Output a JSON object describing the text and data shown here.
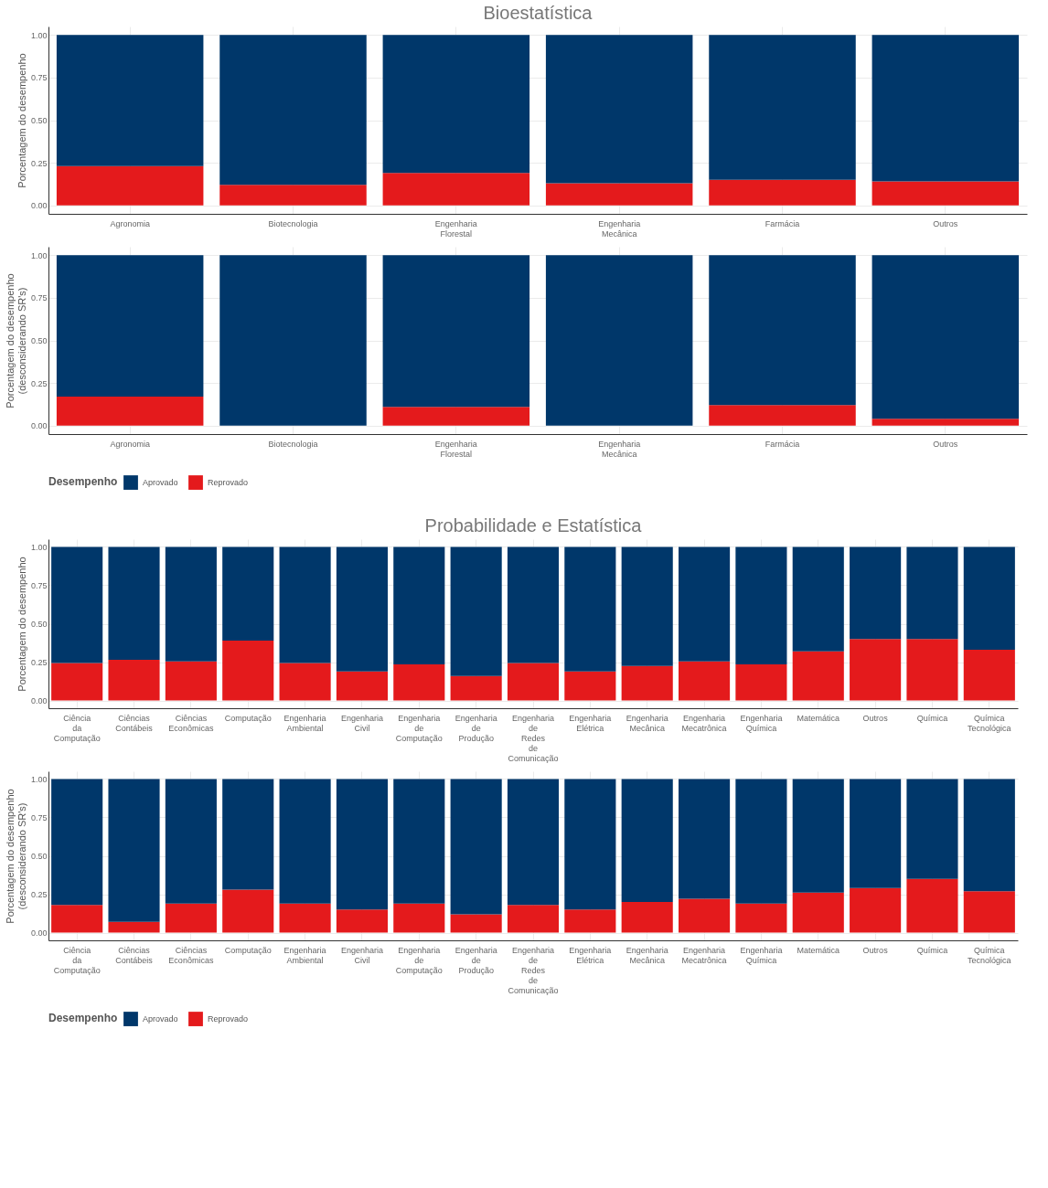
{
  "chart_data": [
    {
      "type": "bar",
      "title": "Bioestatística",
      "ylabel": "Porcentagem do desempenho",
      "stacked": true,
      "grid": true,
      "categories": [
        "Agronomia",
        "Biotecnologia",
        "Engenharia Florestal",
        "Engenharia Mecânica",
        "Farmácia",
        "Outros"
      ],
      "ylim": [
        -0.05,
        1.05
      ],
      "yticks": [
        {
          "value": 0,
          "label": "0.00"
        },
        {
          "value": 0.25,
          "label": "0.25"
        },
        {
          "value": 0.5,
          "label": "0.50"
        },
        {
          "value": 0.75,
          "label": "0.75"
        },
        {
          "value": 1,
          "label": "1.00"
        }
      ],
      "series": [
        {
          "color": "#e41a1c",
          "values": [
            0.23,
            0.12,
            0.19,
            0.13,
            0.15,
            0.14
          ]
        },
        {
          "color": "#00376a",
          "values": [
            0.77,
            0.88,
            0.81,
            0.87,
            0.85,
            0.86
          ]
        }
      ]
    },
    {
      "type": "bar",
      "ylabel": "Porcentagem do desempenho\n(desconsiderando SR's)",
      "stacked": true,
      "grid": true,
      "legend": "bottom",
      "legend_title": "Desempenho",
      "categories": [
        "Agronomia",
        "Biotecnologia",
        "Engenharia Florestal",
        "Engenharia Mecânica",
        "Farmácia",
        "Outros"
      ],
      "ylim": [
        -0.05,
        1.05
      ],
      "yticks": [
        {
          "value": 0,
          "label": "0.00"
        },
        {
          "value": 0.25,
          "label": "0.25"
        },
        {
          "value": 0.5,
          "label": "0.50"
        },
        {
          "value": 0.75,
          "label": "0.75"
        },
        {
          "value": 1,
          "label": "1.00"
        }
      ],
      "series": [
        {
          "name": "Reprovado",
          "color": "#e41a1c",
          "values": [
            0.17,
            0,
            0.11,
            0,
            0.12,
            0.04
          ]
        },
        {
          "name": "Aprovado",
          "color": "#00376a",
          "values": [
            0.83,
            1,
            0.89,
            1,
            0.88,
            0.96
          ]
        }
      ]
    },
    {
      "type": "bar",
      "title": "Probabilidade e Estatística",
      "ylabel": "Porcentagem do desempenho",
      "stacked": true,
      "grid": true,
      "categories": [
        "Ciência da Computação",
        "Ciências Contábeis",
        "Ciências Econômicas",
        "Computação",
        "Engenharia Ambiental",
        "Engenharia Civil",
        "Engenharia de Computação",
        "Engenharia de Produção",
        "Engenharia de Redes de Comunicação",
        "Engenharia Elétrica",
        "Engenharia Mecânica",
        "Engenharia Mecatrônica",
        "Engenharia Química",
        "Matemática",
        "Outros",
        "Química",
        "Química Tecnológica"
      ],
      "ylim": [
        -0.05,
        1.05
      ],
      "yticks": [
        {
          "value": 0,
          "label": "0.00"
        },
        {
          "value": 0.25,
          "label": "0.25"
        },
        {
          "value": 0.5,
          "label": "0.50"
        },
        {
          "value": 0.75,
          "label": "0.75"
        },
        {
          "value": 1,
          "label": "1.00"
        }
      ],
      "series": [
        {
          "color": "#e41a1c",
          "values": [
            0.245,
            0.265,
            0.255,
            0.39,
            0.245,
            0.19,
            0.235,
            0.16,
            0.245,
            0.19,
            0.225,
            0.255,
            0.235,
            0.32,
            0.4,
            0.4,
            0.33
          ]
        },
        {
          "color": "#00376a",
          "values": [
            0.755,
            0.735,
            0.745,
            0.61,
            0.755,
            0.81,
            0.765,
            0.84,
            0.755,
            0.81,
            0.775,
            0.745,
            0.765,
            0.68,
            0.6,
            0.6,
            0.67
          ]
        }
      ]
    },
    {
      "type": "bar",
      "ylabel": "Porcentagem do desempenho\n(desconsiderando SR's)",
      "stacked": true,
      "grid": true,
      "legend": "bottom",
      "legend_title": "Desempenho",
      "categories": [
        "Ciência da Computação",
        "Ciências Contábeis",
        "Ciências Econômicas",
        "Computação",
        "Engenharia Ambiental",
        "Engenharia Civil",
        "Engenharia de Computação",
        "Engenharia de Produção",
        "Engenharia de Redes de Comunicação",
        "Engenharia Elétrica",
        "Engenharia Mecânica",
        "Engenharia Mecatrônica",
        "Engenharia Química",
        "Matemática",
        "Outros",
        "Química",
        "Química Tecnológica"
      ],
      "ylim": [
        -0.05,
        1.05
      ],
      "yticks": [
        {
          "value": 0,
          "label": "0.00"
        },
        {
          "value": 0.25,
          "label": "0.25"
        },
        {
          "value": 0.5,
          "label": "0.50"
        },
        {
          "value": 0.75,
          "label": "0.75"
        },
        {
          "value": 1,
          "label": "1.00"
        }
      ],
      "series": [
        {
          "name": "Reprovado",
          "color": "#e41a1c",
          "values": [
            0.18,
            0.07,
            0.19,
            0.28,
            0.19,
            0.15,
            0.19,
            0.12,
            0.18,
            0.15,
            0.2,
            0.22,
            0.19,
            0.26,
            0.29,
            0.35,
            0.27
          ]
        },
        {
          "name": "Aprovado",
          "color": "#00376a",
          "values": [
            0.82,
            0.93,
            0.81,
            0.72,
            0.81,
            0.85,
            0.81,
            0.88,
            0.82,
            0.85,
            0.8,
            0.78,
            0.81,
            0.74,
            0.71,
            0.65,
            0.73
          ]
        }
      ]
    }
  ]
}
